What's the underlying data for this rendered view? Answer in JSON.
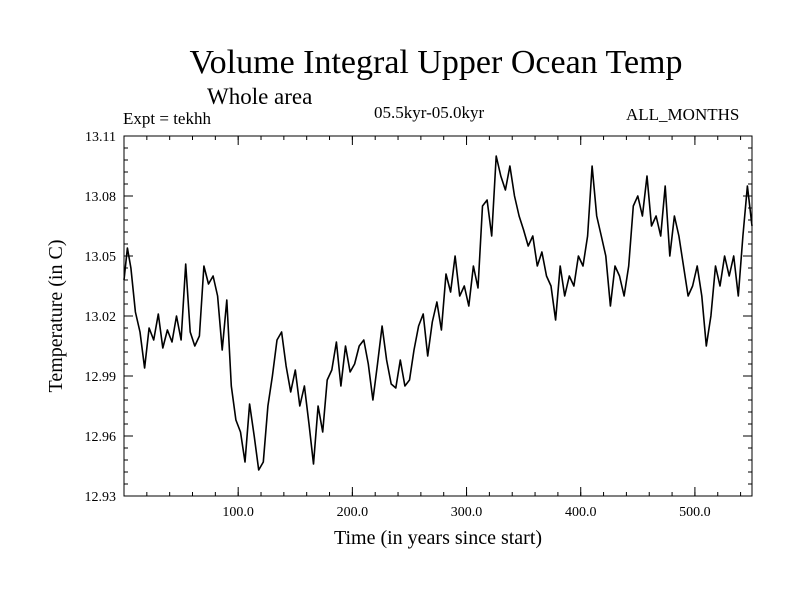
{
  "chart_data": {
    "type": "line",
    "title": "Volume Integral Upper Ocean Temp",
    "subtitle": "Whole area",
    "annotations": {
      "left": "Expt = tekhh",
      "center": "05.5kyr-05.0kyr",
      "right": "ALL_MONTHS"
    },
    "xlabel": "Time (in years since start)",
    "ylabel": "Temperature (in C)",
    "xlim": [
      0,
      550
    ],
    "ylim": [
      12.93,
      13.11
    ],
    "xticks": [
      100,
      200,
      300,
      400,
      500
    ],
    "xtick_labels": [
      "100.0",
      "200.0",
      "300.0",
      "400.0",
      "500.0"
    ],
    "yticks": [
      12.93,
      12.96,
      12.99,
      13.02,
      13.05,
      13.08,
      13.11
    ],
    "ytick_labels": [
      "12.93",
      "12.96",
      "12.99",
      "13.02",
      "13.05",
      "13.08",
      "13.11"
    ],
    "series": [
      {
        "name": "Upper Ocean Temp",
        "x": [
          0,
          3,
          6,
          10,
          14,
          18,
          22,
          26,
          30,
          34,
          38,
          42,
          46,
          50,
          54,
          58,
          62,
          66,
          70,
          74,
          78,
          82,
          86,
          90,
          94,
          98,
          102,
          106,
          110,
          114,
          118,
          122,
          126,
          130,
          134,
          138,
          142,
          146,
          150,
          154,
          158,
          162,
          166,
          170,
          174,
          178,
          182,
          186,
          190,
          194,
          198,
          202,
          206,
          210,
          214,
          218,
          222,
          226,
          230,
          234,
          238,
          242,
          246,
          250,
          254,
          258,
          262,
          266,
          270,
          274,
          278,
          282,
          286,
          290,
          294,
          298,
          302,
          306,
          310,
          314,
          318,
          322,
          326,
          330,
          334,
          338,
          342,
          346,
          350,
          354,
          358,
          362,
          366,
          370,
          374,
          378,
          382,
          386,
          390,
          394,
          398,
          402,
          406,
          410,
          414,
          418,
          422,
          426,
          430,
          434,
          438,
          442,
          446,
          450,
          454,
          458,
          462,
          466,
          470,
          474,
          478,
          482,
          486,
          490,
          494,
          498,
          502,
          506,
          510,
          514,
          518,
          522,
          526,
          530,
          534,
          538,
          542,
          546,
          550
        ],
        "values": [
          13.038,
          13.054,
          13.044,
          13.022,
          13.012,
          12.994,
          13.014,
          13.008,
          13.021,
          13.004,
          13.013,
          13.007,
          13.02,
          13.008,
          13.046,
          13.012,
          13.005,
          13.01,
          13.045,
          13.036,
          13.04,
          13.03,
          13.003,
          13.028,
          12.985,
          12.968,
          12.962,
          12.947,
          12.976,
          12.96,
          12.943,
          12.947,
          12.975,
          12.99,
          13.008,
          13.012,
          12.995,
          12.982,
          12.993,
          12.975,
          12.985,
          12.966,
          12.946,
          12.975,
          12.962,
          12.988,
          12.993,
          13.007,
          12.985,
          13.005,
          12.992,
          12.996,
          13.005,
          13.008,
          12.996,
          12.978,
          12.996,
          13.015,
          12.998,
          12.986,
          12.984,
          12.998,
          12.985,
          12.988,
          13.003,
          13.015,
          13.021,
          13.0,
          13.017,
          13.027,
          13.013,
          13.041,
          13.032,
          13.05,
          13.03,
          13.035,
          13.025,
          13.045,
          13.034,
          13.075,
          13.078,
          13.06,
          13.1,
          13.09,
          13.083,
          13.095,
          13.08,
          13.07,
          13.063,
          13.055,
          13.06,
          13.045,
          13.052,
          13.04,
          13.035,
          13.018,
          13.045,
          13.03,
          13.04,
          13.035,
          13.05,
          13.045,
          13.06,
          13.095,
          13.07,
          13.06,
          13.05,
          13.025,
          13.045,
          13.04,
          13.03,
          13.045,
          13.075,
          13.08,
          13.07,
          13.09,
          13.065,
          13.07,
          13.06,
          13.085,
          13.05,
          13.07,
          13.06,
          13.045,
          13.03,
          13.035,
          13.045,
          13.03,
          13.005,
          13.02,
          13.045,
          13.035,
          13.05,
          13.04,
          13.05,
          13.03,
          13.06,
          13.085,
          13.065
        ]
      }
    ]
  }
}
